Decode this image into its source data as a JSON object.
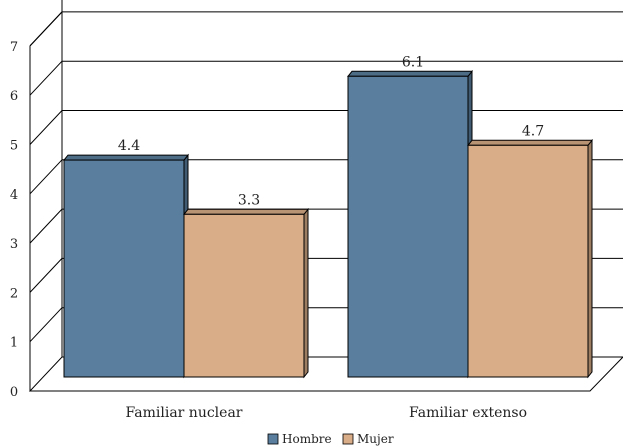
{
  "chart_data": {
    "type": "bar",
    "title": "",
    "xlabel": "",
    "ylabel": "",
    "categories": [
      "Familiar nuclear",
      "Familiar extenso"
    ],
    "series": [
      {
        "name": "Hombre",
        "values": [
          4.4,
          6.1
        ],
        "labels": [
          "4.4",
          "6.1"
        ],
        "color": "#5a7f9e"
      },
      {
        "name": "Mujer",
        "values": [
          3.3,
          4.7
        ],
        "labels": [
          "3.3",
          "4.7"
        ],
        "color": "#d8ad88"
      }
    ],
    "ylim": [
      0,
      7
    ],
    "yticks": [
      "0",
      "1",
      "2",
      "3",
      "4",
      "5",
      "6",
      "7"
    ],
    "grid": true,
    "legend": "bottom",
    "style": "3d-bar"
  }
}
